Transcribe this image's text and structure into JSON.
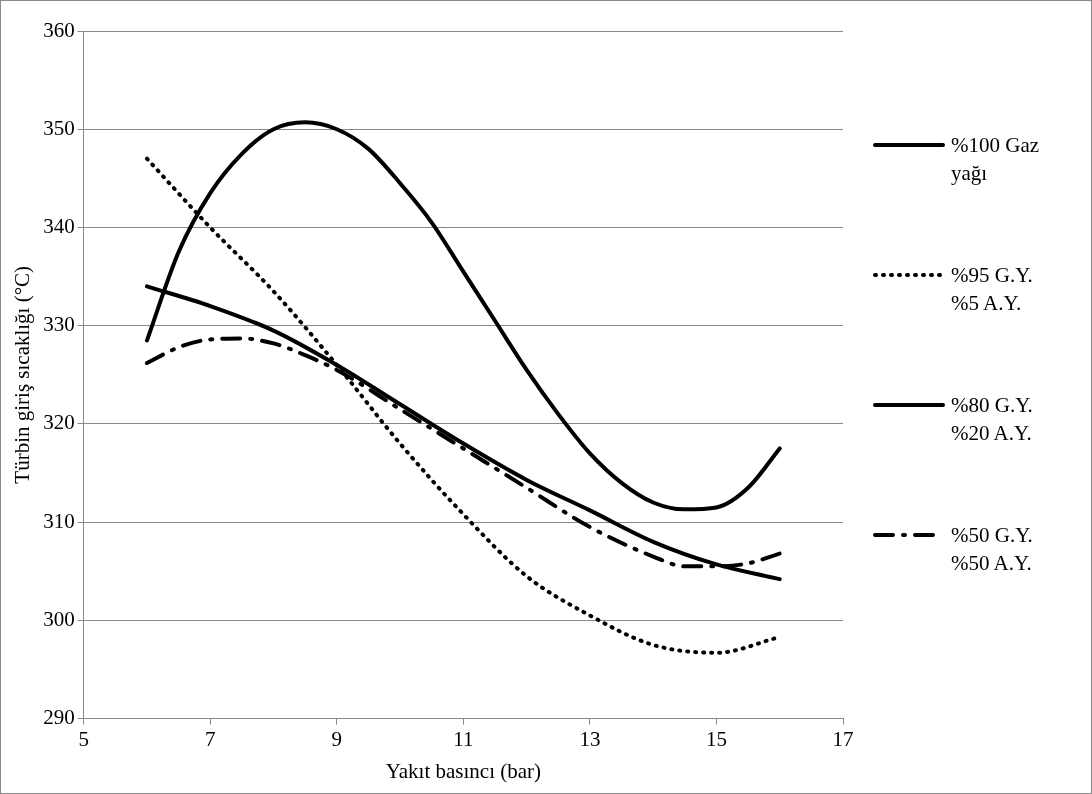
{
  "chart_data": {
    "type": "line",
    "xlabel": "Yakıt basıncı (bar)",
    "ylabel": "Türbin giriş sıcaklığı (°C)",
    "xlim": [
      5,
      17
    ],
    "xticks": [
      5,
      7,
      9,
      11,
      13,
      15,
      17
    ],
    "ylim": [
      290,
      360
    ],
    "yticks": [
      290,
      300,
      310,
      320,
      330,
      340,
      350,
      360
    ],
    "grid": "y",
    "legend": "right",
    "marker": "none",
    "series": [
      {
        "name": "%100 Gaz yağı",
        "color": "#000000",
        "line_style": "solid",
        "x": [
          6,
          6.5,
          7,
          7.5,
          8,
          8.5,
          9,
          9.5,
          10,
          10.5,
          11,
          11.5,
          12,
          12.5,
          13,
          13.5,
          14,
          14.5,
          15,
          15.5,
          16
        ],
        "values": [
          328.5,
          337.5,
          343.5,
          347.5,
          350,
          350.7,
          350,
          348,
          344.5,
          340.5,
          335.5,
          330.5,
          325.5,
          321,
          317,
          314,
          312,
          311.3,
          311.5,
          313.5,
          317.5
        ]
      },
      {
        "name": "%95 G.Y. %5 A.Y.",
        "color": "#000000",
        "line_style": "dotted",
        "x": [
          6,
          7,
          8,
          9,
          10,
          11,
          12,
          13,
          14,
          15,
          16
        ],
        "values": [
          347,
          340,
          333.5,
          326,
          318,
          310.8,
          304.5,
          300.5,
          297.5,
          296.7,
          298.3
        ]
      },
      {
        "name": "%80 G.Y. %20 A.Y.",
        "color": "#000000",
        "line_style": "solid",
        "x": [
          6,
          7,
          8,
          9,
          10,
          11,
          12,
          13,
          14,
          15,
          16
        ],
        "values": [
          334,
          332,
          329.5,
          326,
          322,
          318,
          314.3,
          311.2,
          308,
          305.7,
          304.2
        ]
      },
      {
        "name": "%50 G.Y. %50 A.Y.",
        "color": "#000000",
        "line_style": "dashed",
        "x": [
          6,
          6.5,
          7,
          7.5,
          8,
          8.5,
          9,
          10,
          11,
          12,
          13,
          14,
          14.5,
          15,
          15.5,
          16
        ],
        "values": [
          326.2,
          327.8,
          328.6,
          328.7,
          328.2,
          327,
          325.5,
          321.5,
          317.5,
          313.5,
          309.5,
          306.5,
          305.5,
          305.5,
          305.8,
          306.8
        ]
      }
    ]
  }
}
